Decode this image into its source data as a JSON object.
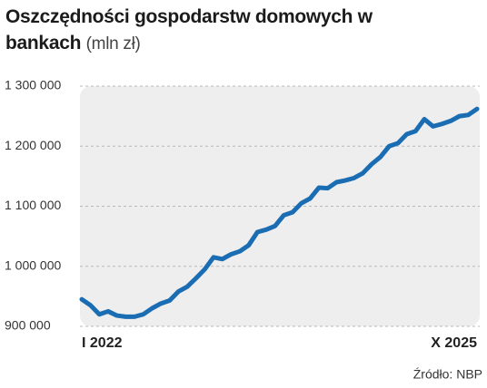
{
  "chart_data": {
    "type": "line",
    "title": "Oszczędności gospodarstw domowych w bankach",
    "unit": "(mln zł)",
    "source": "Źródło: NBP",
    "categories": [
      "I 2022",
      null,
      null,
      null,
      null,
      null,
      null,
      null,
      null,
      null,
      null,
      null,
      null,
      null,
      null,
      null,
      null,
      null,
      null,
      null,
      null,
      null,
      null,
      null,
      null,
      null,
      null,
      null,
      null,
      null,
      null,
      null,
      null,
      null,
      null,
      null,
      null,
      null,
      null,
      null,
      null,
      null,
      null,
      null,
      null,
      "X 2025"
    ],
    "values": [
      945000,
      935000,
      920000,
      925000,
      918000,
      916000,
      916000,
      920000,
      930000,
      938000,
      943000,
      958000,
      966000,
      980000,
      995000,
      1015000,
      1012000,
      1020000,
      1025000,
      1035000,
      1057000,
      1061000,
      1067000,
      1085000,
      1090000,
      1105000,
      1113000,
      1131000,
      1130000,
      1140000,
      1143000,
      1147000,
      1155000,
      1170000,
      1182000,
      1200000,
      1205000,
      1220000,
      1225000,
      1245000,
      1233000,
      1237000,
      1242000,
      1250000,
      1252000,
      1262000
    ],
    "color": "#1a6db3",
    "ylim": [
      900000,
      1300000
    ],
    "yticks": [
      {
        "value": 900000,
        "label": "900 000"
      },
      {
        "value": 1000000,
        "label": "1 000 000"
      },
      {
        "value": 1100000,
        "label": "1 100 000"
      },
      {
        "value": 1200000,
        "label": "1 200 000"
      },
      {
        "value": 1300000,
        "label": "1 300 000"
      }
    ],
    "grid": true
  }
}
